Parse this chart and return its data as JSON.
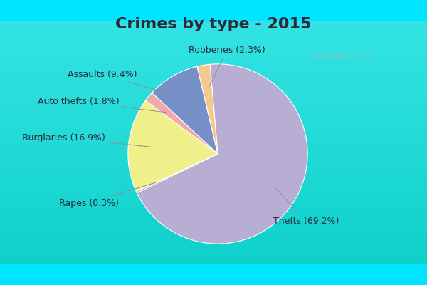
{
  "title": "Crimes by type - 2015",
  "slices": [
    {
      "label": "Thefts (69.2%)",
      "value": 69.2,
      "color": "#b8aed4"
    },
    {
      "label": "Rapes (0.3%)",
      "value": 0.3,
      "color": "#b8aed4"
    },
    {
      "label": "Burglaries (16.9%)",
      "value": 16.9,
      "color": "#f0f08a"
    },
    {
      "label": "Auto thefts (1.8%)",
      "value": 1.8,
      "color": "#f0a8a8"
    },
    {
      "label": "Assaults (9.4%)",
      "value": 9.4,
      "color": "#7890c8"
    },
    {
      "label": "Robberies (2.3%)",
      "value": 2.3,
      "color": "#f5c890"
    }
  ],
  "title_fontsize": 16,
  "label_fontsize": 9,
  "bg_outer": "#00e5ff",
  "bg_inner_top": "#e8f5e8",
  "bg_inner_bottom": "#c8e8d0",
  "watermark": "City-Data.com"
}
